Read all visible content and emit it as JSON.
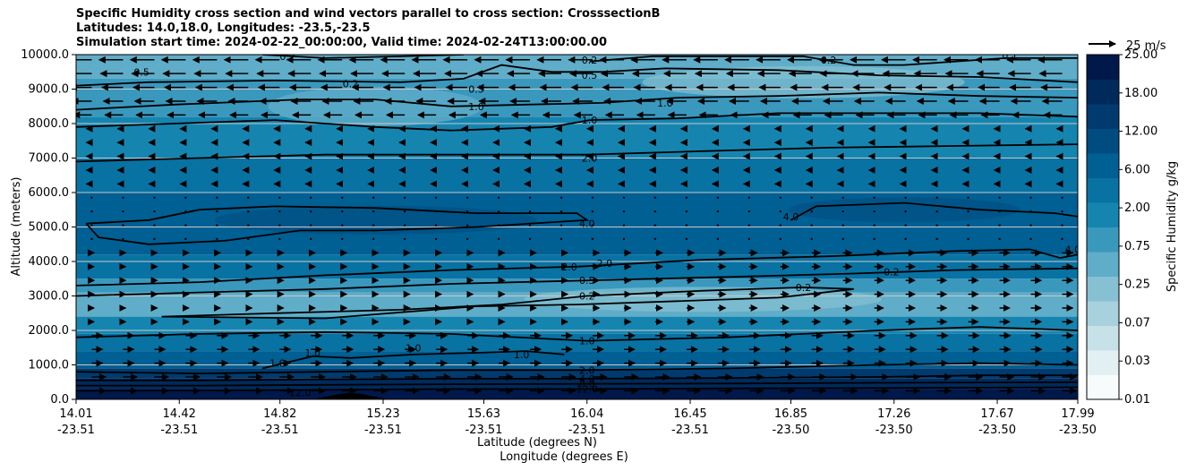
{
  "title_lines": [
    "Specific Humidity cross section and wind vectors parallel to cross section: CrosssectionB",
    "Latitudes: 14.0,18.0, Longitudes: -23.5,-23.5",
    "Simulation start time: 2024-02-22_00:00:00, Valid time: 2024-02-24T13:00:00.00"
  ],
  "chart_data": {
    "type": "contourf-cross-section",
    "xlabel_lat": "Latitude (degrees N)",
    "xlabel_lon": "Longitude (degrees E)",
    "ylabel": "Altitude (meters)",
    "ylim": [
      0,
      10000
    ],
    "y_ticks": [
      "0.0",
      "1000.0",
      "2000.0",
      "3000.0",
      "4000.0",
      "5000.0",
      "6000.0",
      "7000.0",
      "8000.0",
      "9000.0",
      "10000.0"
    ],
    "x_ticks": [
      {
        "lat": "14.01",
        "lon": "-23.51"
      },
      {
        "lat": "14.42",
        "lon": "-23.51"
      },
      {
        "lat": "14.82",
        "lon": "-23.51"
      },
      {
        "lat": "15.23",
        "lon": "-23.51"
      },
      {
        "lat": "15.63",
        "lon": "-23.51"
      },
      {
        "lat": "16.04",
        "lon": "-23.51"
      },
      {
        "lat": "16.45",
        "lon": "-23.51"
      },
      {
        "lat": "16.85",
        "lon": "-23.50"
      },
      {
        "lat": "17.26",
        "lon": "-23.50"
      },
      {
        "lat": "17.67",
        "lon": "-23.50"
      },
      {
        "lat": "17.99",
        "lon": "-23.50"
      }
    ],
    "colorbar": {
      "label": "Specific Humidity g/kg",
      "levels": [
        "0.01",
        "0.03",
        "0.07",
        "0.25",
        "0.75",
        "2.00",
        "6.00",
        "12.00",
        "18.00",
        "25.00"
      ],
      "colors": [
        "#f7fbfc",
        "#e3f0f3",
        "#c6e1e8",
        "#a7d1dc",
        "#86c0d2",
        "#5fadc8",
        "#3a98bd",
        "#1585b0",
        "#0872a3",
        "#005f93",
        "#004c80",
        "#003a6e",
        "#002a5c",
        "#00184a"
      ]
    },
    "quiver_key": {
      "label": "25 m/s",
      "speed": 25
    },
    "contour_labels": [
      {
        "text": "0.5",
        "lat": 14.27,
        "alt": 9500
      },
      {
        "text": "0.2",
        "lat": 14.85,
        "alt": 9950
      },
      {
        "text": "0.2",
        "lat": 15.1,
        "alt": 9150
      },
      {
        "text": "0.5",
        "lat": 15.6,
        "alt": 9000
      },
      {
        "text": "1.0",
        "lat": 15.6,
        "alt": 8500
      },
      {
        "text": "0.2",
        "lat": 16.05,
        "alt": 9850
      },
      {
        "text": "0.5",
        "lat": 16.05,
        "alt": 9400
      },
      {
        "text": "1.0",
        "lat": 16.35,
        "alt": 8600
      },
      {
        "text": "1.0",
        "lat": 16.05,
        "alt": 8100
      },
      {
        "text": "2.0",
        "lat": 16.05,
        "alt": 7000
      },
      {
        "text": "0.2",
        "lat": 17.0,
        "alt": 9850
      },
      {
        "text": "0.1",
        "lat": 17.72,
        "alt": 9970
      },
      {
        "text": "4.0",
        "lat": 16.04,
        "alt": 5100
      },
      {
        "text": "4.0",
        "lat": 16.85,
        "alt": 5300
      },
      {
        "text": "2.0",
        "lat": 15.97,
        "alt": 3850
      },
      {
        "text": "2.0",
        "lat": 16.11,
        "alt": 3950
      },
      {
        "text": "0.5",
        "lat": 16.04,
        "alt": 3450
      },
      {
        "text": "0.2",
        "lat": 16.04,
        "alt": 3000
      },
      {
        "text": "0.2",
        "lat": 17.25,
        "alt": 3700
      },
      {
        "text": "0.2",
        "lat": 16.9,
        "alt": 3250
      },
      {
        "text": "4.0",
        "lat": 17.97,
        "alt": 4350
      },
      {
        "text": "1.0",
        "lat": 16.04,
        "alt": 1700
      },
      {
        "text": "1.0",
        "lat": 14.81,
        "alt": 1050
      },
      {
        "text": "1.0",
        "lat": 14.95,
        "alt": 1350
      },
      {
        "text": "1.0",
        "lat": 15.35,
        "alt": 1500
      },
      {
        "text": "1.0",
        "lat": 15.78,
        "alt": 1300
      },
      {
        "text": "2.0",
        "lat": 16.04,
        "alt": 850
      },
      {
        "text": "4.0",
        "lat": 16.04,
        "alt": 600
      },
      {
        "text": "8.0",
        "lat": 16.04,
        "alt": 450
      },
      {
        "text": "12.0",
        "lat": 16.04,
        "alt": 300
      },
      {
        "text": "12.0",
        "lat": 14.9,
        "alt": 200
      }
    ],
    "contour_lines": [
      {
        "level": "0.5",
        "points": [
          [
            14.01,
            9100
          ],
          [
            14.3,
            9200
          ],
          [
            14.8,
            9250
          ],
          [
            15.3,
            9200
          ],
          [
            15.55,
            9300
          ],
          [
            15.7,
            9700
          ],
          [
            15.9,
            9500
          ],
          [
            16.1,
            9500
          ],
          [
            16.35,
            9600
          ],
          [
            16.8,
            9550
          ],
          [
            17.2,
            9400
          ],
          [
            17.6,
            9350
          ],
          [
            17.99,
            9200
          ]
        ]
      },
      {
        "level": "0.2",
        "points": [
          [
            14.75,
            10000
          ],
          [
            15.0,
            9900
          ],
          [
            15.3,
            9950
          ],
          [
            15.55,
            10000
          ]
        ]
      },
      {
        "level": "0.2",
        "points": [
          [
            16.05,
            9800
          ],
          [
            16.3,
            9950
          ],
          [
            16.9,
            9950
          ],
          [
            17.1,
            9700
          ],
          [
            17.3,
            9700
          ],
          [
            17.7,
            9900
          ],
          [
            17.99,
            9900
          ]
        ]
      },
      {
        "level": "1.0",
        "points": [
          [
            14.01,
            8400
          ],
          [
            14.4,
            8550
          ],
          [
            14.9,
            8700
          ],
          [
            15.2,
            8700
          ],
          [
            15.5,
            8500
          ],
          [
            15.8,
            8550
          ],
          [
            16.1,
            8600
          ],
          [
            16.4,
            8750
          ],
          [
            16.8,
            8800
          ],
          [
            17.2,
            8900
          ],
          [
            17.6,
            8800
          ],
          [
            17.99,
            8750
          ]
        ]
      },
      {
        "level": "1.0",
        "points": [
          [
            14.01,
            7900
          ],
          [
            14.4,
            8000
          ],
          [
            14.8,
            8100
          ],
          [
            15.2,
            7900
          ],
          [
            15.5,
            7800
          ],
          [
            15.9,
            7900
          ],
          [
            16.05,
            8100
          ],
          [
            16.4,
            8150
          ],
          [
            16.8,
            8300
          ],
          [
            17.2,
            8300
          ],
          [
            17.6,
            8300
          ],
          [
            17.99,
            8200
          ]
        ]
      },
      {
        "level": "2.0",
        "points": [
          [
            14.01,
            6900
          ],
          [
            14.5,
            7000
          ],
          [
            15.0,
            7100
          ],
          [
            15.5,
            7100
          ],
          [
            16.04,
            7100
          ],
          [
            16.5,
            7200
          ],
          [
            17.0,
            7300
          ],
          [
            17.5,
            7350
          ],
          [
            17.99,
            7400
          ]
        ]
      },
      {
        "level": "4.0",
        "points": [
          [
            14.05,
            5100
          ],
          [
            14.3,
            5200
          ],
          [
            14.5,
            5500
          ],
          [
            14.8,
            5600
          ],
          [
            15.2,
            5550
          ],
          [
            15.6,
            5400
          ],
          [
            16.0,
            5400
          ],
          [
            16.04,
            5200
          ],
          [
            15.6,
            5000
          ],
          [
            15.2,
            4900
          ],
          [
            14.9,
            4900
          ],
          [
            14.6,
            4600
          ],
          [
            14.3,
            4500
          ],
          [
            14.1,
            4700
          ],
          [
            14.05,
            5100
          ]
        ]
      },
      {
        "level": "4.0",
        "points": [
          [
            16.85,
            5200
          ],
          [
            16.95,
            5600
          ],
          [
            17.3,
            5700
          ],
          [
            17.6,
            5500
          ],
          [
            17.9,
            5400
          ],
          [
            17.99,
            5300
          ]
        ]
      },
      {
        "level": "2.0",
        "points": [
          [
            14.01,
            3300
          ],
          [
            14.5,
            3400
          ],
          [
            15.0,
            3600
          ],
          [
            15.5,
            3750
          ],
          [
            16.0,
            3850
          ],
          [
            16.5,
            4050
          ],
          [
            17.0,
            4150
          ],
          [
            17.5,
            4300
          ],
          [
            17.8,
            4350
          ],
          [
            17.92,
            4100
          ],
          [
            17.99,
            4200
          ]
        ]
      },
      {
        "level": "0.5",
        "points": [
          [
            14.01,
            3000
          ],
          [
            14.5,
            3100
          ],
          [
            15.0,
            3200
          ],
          [
            15.5,
            3350
          ],
          [
            16.04,
            3450
          ],
          [
            16.6,
            3550
          ],
          [
            17.1,
            3650
          ],
          [
            17.5,
            3750
          ],
          [
            17.99,
            3800
          ]
        ]
      },
      {
        "level": "0.2",
        "points": [
          [
            14.35,
            2400
          ],
          [
            14.8,
            2500
          ],
          [
            15.3,
            2600
          ],
          [
            15.7,
            2750
          ],
          [
            16.04,
            3000
          ],
          [
            16.5,
            3150
          ],
          [
            16.9,
            3250
          ],
          [
            17.1,
            3200
          ],
          [
            16.8,
            2950
          ],
          [
            16.4,
            2850
          ],
          [
            16.0,
            2750
          ],
          [
            15.6,
            2700
          ],
          [
            15.0,
            2350
          ],
          [
            14.35,
            2400
          ]
        ]
      },
      {
        "level": "1.0",
        "points": [
          [
            14.01,
            1800
          ],
          [
            14.5,
            1900
          ],
          [
            15.0,
            1950
          ],
          [
            15.5,
            1900
          ],
          [
            16.04,
            1700
          ],
          [
            16.6,
            1800
          ],
          [
            17.2,
            2000
          ],
          [
            17.6,
            2100
          ],
          [
            17.99,
            2000
          ]
        ]
      },
      {
        "level": "1.0",
        "points": [
          [
            14.75,
            900
          ],
          [
            14.95,
            1250
          ],
          [
            15.1,
            1200
          ],
          [
            15.35,
            1300
          ],
          [
            15.6,
            1350
          ],
          [
            15.8,
            1400
          ],
          [
            15.95,
            1300
          ]
        ]
      },
      {
        "level": "2.0",
        "points": [
          [
            14.01,
            800
          ],
          [
            14.5,
            750
          ],
          [
            15.0,
            800
          ],
          [
            15.5,
            850
          ],
          [
            16.04,
            850
          ],
          [
            16.6,
            900
          ],
          [
            17.2,
            1000
          ],
          [
            17.6,
            1050
          ],
          [
            17.99,
            1000
          ]
        ]
      },
      {
        "level": "4.0",
        "points": [
          [
            14.01,
            550
          ],
          [
            14.5,
            550
          ],
          [
            15.0,
            580
          ],
          [
            15.5,
            600
          ],
          [
            16.04,
            600
          ],
          [
            16.6,
            620
          ],
          [
            17.2,
            650
          ],
          [
            17.6,
            700
          ],
          [
            17.99,
            700
          ]
        ]
      },
      {
        "level": "8.0",
        "points": [
          [
            14.01,
            400
          ],
          [
            14.5,
            400
          ],
          [
            15.0,
            420
          ],
          [
            15.5,
            440
          ],
          [
            16.04,
            450
          ],
          [
            16.6,
            460
          ],
          [
            17.2,
            480
          ],
          [
            17.99,
            500
          ]
        ]
      },
      {
        "level": "12.0",
        "points": [
          [
            14.01,
            250
          ],
          [
            14.5,
            260
          ],
          [
            15.0,
            280
          ],
          [
            15.5,
            300
          ],
          [
            16.04,
            300
          ],
          [
            16.6,
            320
          ],
          [
            17.2,
            330
          ],
          [
            17.99,
            350
          ]
        ]
      }
    ],
    "terrain": {
      "label": "orography",
      "points": [
        [
          14.95,
          0
        ],
        [
          15.05,
          150
        ],
        [
          15.1,
          200
        ],
        [
          15.15,
          150
        ],
        [
          15.25,
          0
        ]
      ]
    }
  }
}
